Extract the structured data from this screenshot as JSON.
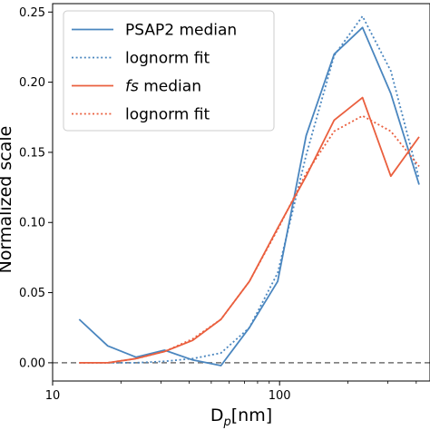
{
  "chart_data": {
    "type": "line",
    "xscale": "log",
    "xlim": [
      10,
      460
    ],
    "ylim": [
      -0.013,
      0.256
    ],
    "xlabel_main": "D",
    "xlabel_sub": "p",
    "xlabel_unit": "[nm]",
    "ylabel": "Normalized scale",
    "x_ticks": [
      {
        "value": 10,
        "label": "10"
      },
      {
        "value": 100,
        "label": "100"
      }
    ],
    "y_ticks": [
      {
        "value": 0.0,
        "label": "0.00"
      },
      {
        "value": 0.05,
        "label": "0.05"
      },
      {
        "value": 0.1,
        "label": "0.10"
      },
      {
        "value": 0.15,
        "label": "0.15"
      },
      {
        "value": 0.2,
        "label": "0.20"
      },
      {
        "value": 0.25,
        "label": "0.25"
      }
    ],
    "zero_line": {
      "y": 0.0,
      "style": "dashed",
      "color": "#707070"
    },
    "legend_position": "upper-left",
    "series": [
      {
        "name": "PSAP2 median",
        "color": "#4a86bf",
        "style": "solid",
        "points": [
          [
            13.1,
            0.031
          ],
          [
            17.5,
            0.012
          ],
          [
            23.3,
            0.004
          ],
          [
            31.1,
            0.009
          ],
          [
            41.4,
            0.002
          ],
          [
            55.2,
            -0.002
          ],
          [
            73.6,
            0.025
          ],
          [
            98.1,
            0.058
          ],
          [
            131,
            0.162
          ],
          [
            174,
            0.22
          ],
          [
            232,
            0.239
          ],
          [
            309,
            0.192
          ],
          [
            412,
            0.127
          ]
        ]
      },
      {
        "name": "lognorm fit",
        "color": "#4a86bf",
        "style": "dotted",
        "points": [
          [
            13.1,
            0.0
          ],
          [
            17.5,
            0.0
          ],
          [
            23.3,
            0.0
          ],
          [
            31.1,
            0.001
          ],
          [
            41.4,
            0.003
          ],
          [
            55.2,
            0.007
          ],
          [
            73.6,
            0.025
          ],
          [
            98.1,
            0.064
          ],
          [
            131,
            0.148
          ],
          [
            174,
            0.219
          ],
          [
            232,
            0.247
          ],
          [
            309,
            0.208
          ],
          [
            412,
            0.131
          ]
        ]
      },
      {
        "name": "fs median",
        "color": "#ea5f3e",
        "style": "solid",
        "points": [
          [
            13.1,
            0.0
          ],
          [
            17.5,
            0.0
          ],
          [
            23.3,
            0.003
          ],
          [
            31.1,
            0.008
          ],
          [
            41.4,
            0.016
          ],
          [
            55.2,
            0.031
          ],
          [
            73.6,
            0.058
          ],
          [
            98.1,
            0.096
          ],
          [
            131,
            0.133
          ],
          [
            174,
            0.173
          ],
          [
            232,
            0.189
          ],
          [
            309,
            0.133
          ],
          [
            412,
            0.161
          ]
        ]
      },
      {
        "name": "lognorm fit",
        "color": "#ea5f3e",
        "style": "dotted",
        "points": [
          [
            13.1,
            0.0
          ],
          [
            17.5,
            0.0
          ],
          [
            23.3,
            0.003
          ],
          [
            31.1,
            0.008
          ],
          [
            41.4,
            0.017
          ],
          [
            55.2,
            0.031
          ],
          [
            73.6,
            0.058
          ],
          [
            98.1,
            0.095
          ],
          [
            131,
            0.135
          ],
          [
            174,
            0.165
          ],
          [
            232,
            0.176
          ],
          [
            309,
            0.165
          ],
          [
            412,
            0.14
          ]
        ]
      }
    ],
    "legend": [
      {
        "label_prefix": "PSAP2",
        "label_suffix": " median",
        "prefix_italic": false,
        "color": "#4a86bf",
        "style": "solid"
      },
      {
        "label_prefix": "lognorm",
        "label_suffix": " fit",
        "prefix_italic": false,
        "color": "#4a86bf",
        "style": "dotted"
      },
      {
        "label_prefix": "fs",
        "label_suffix": " median",
        "prefix_italic": true,
        "color": "#ea5f3e",
        "style": "solid"
      },
      {
        "label_prefix": "lognorm",
        "label_suffix": " fit",
        "prefix_italic": false,
        "color": "#ea5f3e",
        "style": "dotted"
      }
    ]
  }
}
